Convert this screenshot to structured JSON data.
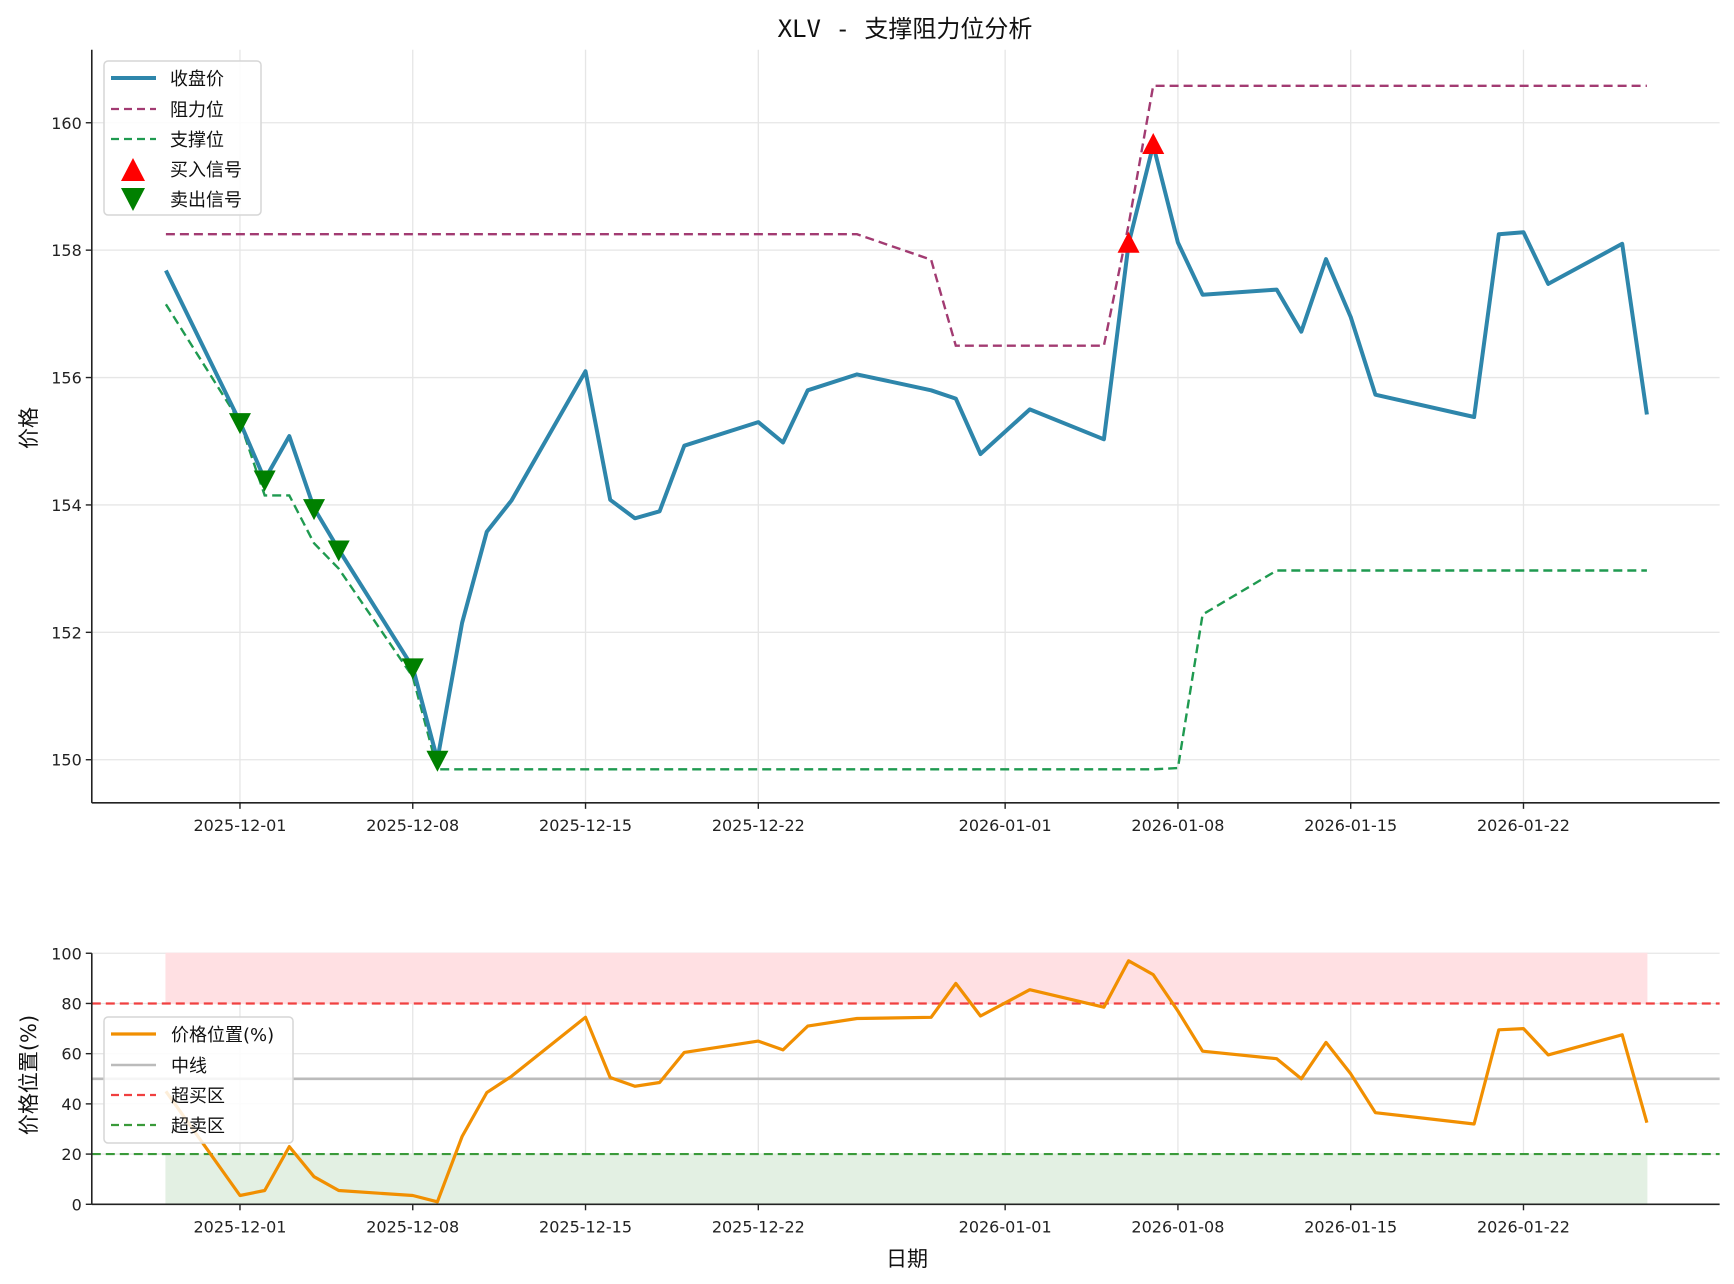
{
  "chart_data": [
    {
      "type": "line",
      "title": "XLV - 支撑阻力位分析",
      "xlabel": "",
      "ylabel": "价格",
      "ylim": [
        149.3,
        161.2
      ],
      "yticks": [
        150,
        152,
        154,
        156,
        158,
        160
      ],
      "xticks": [
        "2025-12-01",
        "2025-12-08",
        "2025-12-15",
        "2025-12-22",
        "2026-01-01",
        "2026-01-08",
        "2026-01-15",
        "2026-01-22"
      ],
      "grid": true,
      "legend_position": "upper left",
      "legend": [
        "收盘价",
        "阻力位",
        "支撑位",
        "买入信号",
        "卖出信号"
      ],
      "x": [
        "2025-11-28",
        "2025-12-01",
        "2025-12-02",
        "2025-12-03",
        "2025-12-04",
        "2025-12-05",
        "2025-12-08",
        "2025-12-09",
        "2025-12-10",
        "2025-12-11",
        "2025-12-12",
        "2025-12-15",
        "2025-12-16",
        "2025-12-17",
        "2025-12-18",
        "2025-12-19",
        "2025-12-22",
        "2025-12-23",
        "2025-12-24",
        "2025-12-26",
        "2025-12-29",
        "2025-12-30",
        "2025-12-31",
        "2026-01-02",
        "2026-01-05",
        "2026-01-06",
        "2026-01-07",
        "2026-01-08",
        "2026-01-09",
        "2026-01-12",
        "2026-01-13",
        "2026-01-14",
        "2026-01-15",
        "2026-01-16",
        "2026-01-20",
        "2026-01-21",
        "2026-01-22",
        "2026-01-23",
        "2026-01-26",
        "2026-01-27"
      ],
      "series": [
        {
          "name": "收盘价",
          "color": "#2e86ab",
          "style": "solid",
          "values": [
            157.68,
            155.3,
            154.4,
            155.08,
            153.95,
            153.3,
            151.45,
            150.0,
            152.15,
            153.58,
            154.07,
            156.1,
            154.08,
            153.79,
            153.9,
            154.93,
            155.3,
            154.98,
            155.8,
            156.05,
            155.8,
            155.67,
            154.8,
            155.5,
            155.03,
            158.1,
            159.65,
            158.12,
            157.3,
            157.38,
            156.72,
            157.86,
            156.95,
            155.73,
            155.38,
            158.25,
            158.28,
            157.47,
            158.1,
            155.42
          ]
        },
        {
          "name": "阻力位",
          "color": "#a23b72",
          "style": "dashed",
          "values": [
            158.25,
            158.25,
            158.25,
            158.25,
            158.25,
            158.25,
            158.25,
            158.25,
            158.25,
            158.25,
            158.25,
            158.25,
            158.25,
            158.25,
            158.25,
            158.25,
            158.25,
            158.25,
            158.25,
            158.25,
            157.85,
            156.5,
            156.5,
            156.5,
            156.5,
            158.4,
            160.58,
            160.58,
            160.58,
            160.58,
            160.58,
            160.58,
            160.58,
            160.58,
            160.58,
            160.58,
            160.58,
            160.58,
            160.58,
            160.58
          ]
        },
        {
          "name": "支撑位",
          "color": "#1f9a50",
          "style": "dashed",
          "values": [
            157.15,
            155.3,
            154.15,
            154.15,
            153.4,
            153.0,
            151.3,
            149.85,
            149.85,
            149.85,
            149.85,
            149.85,
            149.85,
            149.85,
            149.85,
            149.85,
            149.85,
            149.85,
            149.85,
            149.85,
            149.85,
            149.85,
            149.85,
            149.85,
            149.85,
            149.85,
            149.85,
            149.87,
            152.28,
            152.97,
            152.97,
            152.97,
            152.97,
            152.97,
            152.97,
            152.97,
            152.97,
            152.97,
            152.97,
            152.97
          ]
        }
      ],
      "markers": [
        {
          "name": "买入信号",
          "color": "#ff0000",
          "shape": "triangle-up",
          "points": [
            {
              "x": "2026-01-06",
              "y": 158.1
            },
            {
              "x": "2026-01-07",
              "y": 159.65
            }
          ]
        },
        {
          "name": "卖出信号",
          "color": "#008000",
          "shape": "triangle-down",
          "points": [
            {
              "x": "2025-12-01",
              "y": 155.3
            },
            {
              "x": "2025-12-02",
              "y": 154.4
            },
            {
              "x": "2025-12-04",
              "y": 153.95
            },
            {
              "x": "2025-12-05",
              "y": 153.3
            },
            {
              "x": "2025-12-08",
              "y": 151.45
            },
            {
              "x": "2025-12-09",
              "y": 150.0
            }
          ]
        }
      ]
    },
    {
      "type": "line",
      "title": "",
      "xlabel": "日期",
      "ylabel": "价格位置(%)",
      "ylim": [
        0,
        100
      ],
      "yticks": [
        0,
        20,
        40,
        60,
        80,
        100
      ],
      "xticks": [
        "2025-12-01",
        "2025-12-08",
        "2025-12-15",
        "2025-12-22",
        "2026-01-01",
        "2026-01-08",
        "2026-01-15",
        "2026-01-22"
      ],
      "grid": true,
      "legend_position": "center left",
      "legend": [
        "价格位置(%)",
        "中线",
        "超买区",
        "超卖区"
      ],
      "series": [
        {
          "name": "价格位置(%)",
          "color": "#f18f01",
          "style": "solid",
          "values": [
            45,
            3.5,
            5.5,
            23,
            11,
            5.5,
            3.5,
            1,
            27,
            44.5,
            51,
            74.5,
            50.5,
            47,
            48.5,
            60.5,
            65,
            61.5,
            71,
            74,
            74.5,
            88,
            75,
            85.5,
            78.5,
            97,
            91.5,
            77,
            61,
            58,
            50,
            64.5,
            52,
            36.5,
            32,
            69.5,
            70,
            59.5,
            67.5,
            32.5
          ]
        },
        {
          "name": "中线",
          "color": "#bbbbbb",
          "style": "solid",
          "value": 50
        },
        {
          "name": "超买区",
          "color": "#f04040",
          "style": "dashed",
          "value": 80
        },
        {
          "name": "超卖区",
          "color": "#3a9a3a",
          "style": "dashed",
          "value": 20
        }
      ],
      "bands": [
        {
          "from": 80,
          "to": 100,
          "color": "#ffe0e3"
        },
        {
          "from": 0,
          "to": 20,
          "color": "#e3f0e3"
        }
      ]
    }
  ]
}
